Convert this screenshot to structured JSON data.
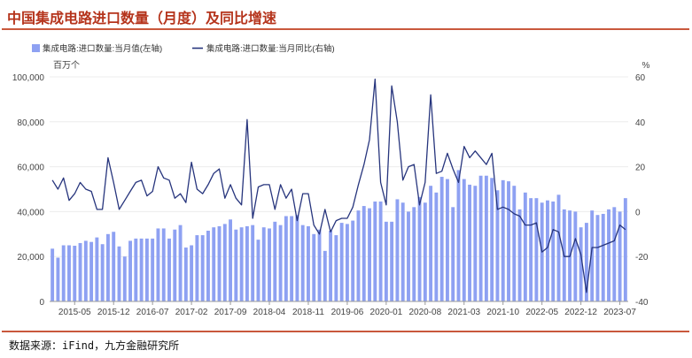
{
  "header": {
    "title": "中国集成电路进口数量（月度）及同比增速"
  },
  "footer": {
    "source": "数据来源：iFind，九方金融研究所"
  },
  "colors": {
    "bar": "#8ea1f2",
    "line": "#27357d",
    "title": "#b5341c",
    "rule": "#c9583c",
    "axis": "#444444",
    "grid": "#ececec"
  },
  "chart_data": {
    "type": "bar+line",
    "legend": [
      "集成电路:进口数量:当月值(左轴)",
      "集成电路:进口数量:当月同比(右轴)"
    ],
    "left_unit": "百万个",
    "right_unit": "%",
    "left_ylim": [
      0,
      100000
    ],
    "left_ticks": [
      "0",
      "20,000",
      "40,000",
      "60,000",
      "80,000",
      "100,000"
    ],
    "right_ylim": [
      -40,
      60
    ],
    "right_ticks": [
      "-40",
      "-20",
      "0",
      "20",
      "40",
      "60"
    ],
    "x_tick_labels": [
      "2015-05",
      "2015-12",
      "2016-07",
      "2017-02",
      "2017-09",
      "2018-04",
      "2018-11",
      "2019-06",
      "2020-01",
      "2020-08",
      "2021-03",
      "2021-10",
      "2022-05",
      "2022-12",
      "2023-07"
    ],
    "months": [
      "2015-01",
      "2015-02",
      "2015-03",
      "2015-04",
      "2015-05",
      "2015-06",
      "2015-07",
      "2015-08",
      "2015-09",
      "2015-10",
      "2015-11",
      "2015-12",
      "2016-01",
      "2016-02",
      "2016-03",
      "2016-04",
      "2016-05",
      "2016-06",
      "2016-07",
      "2016-08",
      "2016-09",
      "2016-10",
      "2016-11",
      "2016-12",
      "2017-01",
      "2017-02",
      "2017-03",
      "2017-04",
      "2017-05",
      "2017-06",
      "2017-07",
      "2017-08",
      "2017-09",
      "2017-10",
      "2017-11",
      "2017-12",
      "2018-01",
      "2018-02",
      "2018-03",
      "2018-04",
      "2018-05",
      "2018-06",
      "2018-07",
      "2018-08",
      "2018-09",
      "2018-10",
      "2018-11",
      "2018-12",
      "2019-01",
      "2019-02",
      "2019-03",
      "2019-04",
      "2019-05",
      "2019-06",
      "2019-07",
      "2019-08",
      "2019-09",
      "2019-10",
      "2019-11",
      "2019-12",
      "2020-01",
      "2020-02",
      "2020-03",
      "2020-04",
      "2020-05",
      "2020-06",
      "2020-07",
      "2020-08",
      "2020-09",
      "2020-10",
      "2020-11",
      "2020-12",
      "2021-01",
      "2021-02",
      "2021-03",
      "2021-04",
      "2021-05",
      "2021-06",
      "2021-07",
      "2021-08",
      "2021-09",
      "2021-10",
      "2021-11",
      "2021-12",
      "2022-01",
      "2022-02",
      "2022-03",
      "2022-04",
      "2022-05",
      "2022-06",
      "2022-07",
      "2022-08",
      "2022-09",
      "2022-10",
      "2022-11",
      "2022-12",
      "2023-01",
      "2023-02",
      "2023-03",
      "2023-04",
      "2023-05",
      "2023-06",
      "2023-07",
      "2023-08"
    ],
    "series": [
      {
        "name": "集成电路:进口数量:当月值(左轴)",
        "kind": "bar",
        "values": [
          23500,
          19500,
          25000,
          25000,
          24800,
          26000,
          27000,
          26500,
          28500,
          25500,
          30000,
          31000,
          24500,
          20000,
          27000,
          28000,
          28000,
          28000,
          28000,
          32500,
          32500,
          28000,
          32000,
          34000,
          24000,
          25000,
          29500,
          29500,
          31500,
          33000,
          33500,
          34500,
          36500,
          32000,
          33000,
          33500,
          34000,
          27500,
          33000,
          32500,
          35500,
          34000,
          38000,
          38000,
          38500,
          34000,
          33500,
          30000,
          32000,
          22500,
          31500,
          29500,
          35000,
          34500,
          36000,
          40500,
          42500,
          41500,
          44500,
          44500,
          35500,
          35500,
          45500,
          44000,
          40000,
          42000,
          46500,
          44000,
          51500,
          48500,
          55500,
          54500,
          42000,
          58500,
          54500,
          52000,
          51500,
          56000,
          56000,
          55000,
          49500,
          54000,
          53500,
          51500,
          41000,
          48500,
          46000,
          46000,
          44000,
          45000,
          44500,
          47500,
          41000,
          40500,
          40000,
          33000,
          35000,
          40500,
          38500,
          39000,
          41000,
          42000,
          40000,
          46000
        ]
      },
      {
        "name": "集成电路:进口数量:当月同比(右轴)",
        "kind": "line",
        "values": [
          14,
          10,
          15,
          5,
          8,
          13,
          10,
          9,
          1,
          1,
          24,
          13,
          1,
          5,
          9,
          13,
          14,
          7,
          9,
          20,
          15,
          14,
          6,
          8,
          4,
          22,
          10,
          8,
          12,
          17,
          19,
          6,
          12,
          6,
          3,
          41,
          -3,
          11,
          12,
          12,
          1,
          12,
          6,
          10,
          -4,
          8,
          8,
          -6,
          -10,
          1,
          -9,
          -4,
          -3,
          -3,
          2,
          12,
          21,
          32,
          59,
          13,
          3,
          56,
          40,
          14,
          20,
          21,
          3,
          13,
          52,
          17,
          18,
          26,
          19,
          13,
          29,
          24,
          27,
          24,
          21,
          26,
          1,
          2,
          1,
          -1,
          -2,
          -6,
          -6,
          -5,
          -18,
          -16,
          -8,
          -9,
          -20,
          -20,
          -12,
          -19,
          -36,
          -16,
          -16,
          -15,
          -14,
          -13,
          -6,
          -8
        ]
      }
    ]
  }
}
